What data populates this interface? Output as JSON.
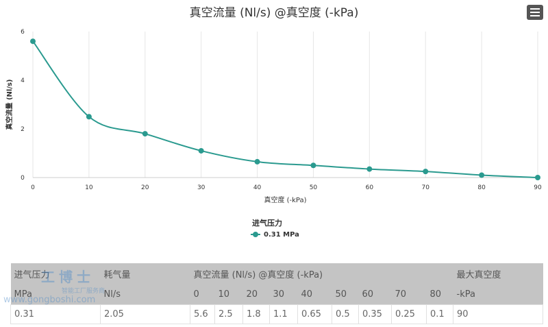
{
  "chart_data": {
    "type": "line",
    "title": "真空流量 (Nl/s) @真空度 (-kPa)",
    "xlabel": "真空度 (-kPa)",
    "ylabel": "真空流量 (Nl/s)",
    "x": [
      0,
      10,
      20,
      30,
      40,
      50,
      60,
      70,
      80,
      90
    ],
    "xticks": [
      0,
      10,
      20,
      30,
      40,
      50,
      60,
      70,
      80,
      90
    ],
    "yticks": [
      0,
      2,
      4,
      6
    ],
    "xlim": [
      0,
      90
    ],
    "ylim": [
      0,
      6
    ],
    "grid": true,
    "legend_title": "进气压力",
    "legend_placement": "bottom-center",
    "series": [
      {
        "name": "0.31 MPa",
        "color": "#2a9a8f",
        "values": [
          5.6,
          2.5,
          1.8,
          1.1,
          0.65,
          0.5,
          0.35,
          0.25,
          0.1,
          0
        ]
      }
    ]
  },
  "table": {
    "header1": [
      "进气压力",
      "耗气量",
      "真空流量 (Nl/s) @真空度 (-kPa)",
      "最大真空度"
    ],
    "header2": [
      "MPa",
      "Nl/s",
      "0",
      "10",
      "20",
      "30",
      "40",
      "50",
      "60",
      "70",
      "80",
      "-kPa"
    ],
    "row": [
      "0.31",
      "2.05",
      "5.6",
      "2.5",
      "1.8",
      "1.1",
      "0.65",
      "0.5",
      "0.35",
      "0.25",
      "0.1",
      "90"
    ]
  },
  "watermark": {
    "name": "工博士",
    "sub": "智能工厂服务商",
    "url": "www.gongboshi.com"
  }
}
